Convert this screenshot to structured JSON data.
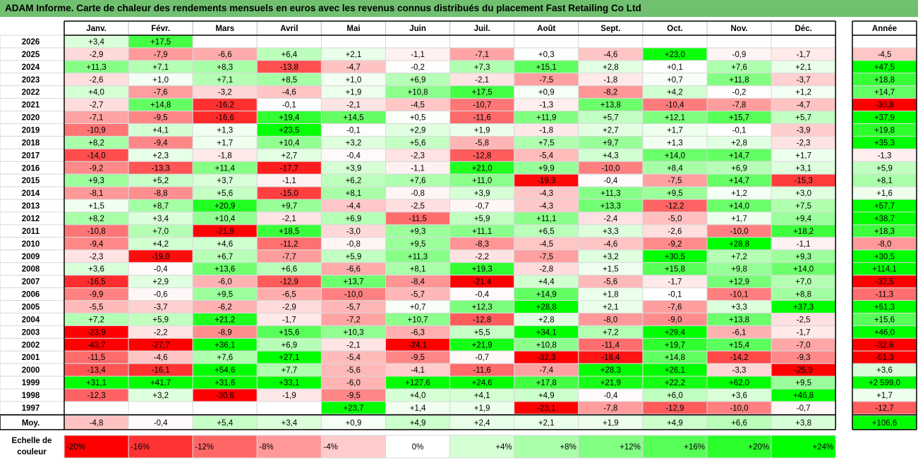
{
  "title": "ADAM Informe. Carte de chaleur des rendements mensuels en euros avec les revenus connus distribués du placement Fast Retailing Co Ltd",
  "chart_data": {
    "type": "heatmap",
    "columns": [
      "Janv.",
      "Févr.",
      "Mars",
      "Avril",
      "Mai",
      "Juin",
      "Juil.",
      "Août",
      "Sept.",
      "Oct.",
      "Nov.",
      "Déc."
    ],
    "annual_header": "Année",
    "rows": [
      {
        "year": "2026",
        "values": [
          "+3,4",
          "+17,5",
          "",
          "",
          "",
          "",
          "",
          "",
          "",
          "",
          "",
          ""
        ],
        "annual": ""
      },
      {
        "year": "2025",
        "values": [
          "-2,9",
          "-7,9",
          "-6,6",
          "+6,4",
          "+2,1",
          "-1,1",
          "-7,1",
          "+0,3",
          "-4,6",
          "+23,0",
          "-0,9",
          "-1,7"
        ],
        "annual": "-4,5"
      },
      {
        "year": "2024",
        "values": [
          "+11,3",
          "+7,1",
          "+8,3",
          "-13,8",
          "-4,7",
          "-0,2",
          "+7,3",
          "+15,1",
          "+2,8",
          "+0,1",
          "+7,6",
          "+2,1"
        ],
        "annual": "+47,5"
      },
      {
        "year": "2023",
        "values": [
          "-2,6",
          "+1,0",
          "+7,1",
          "+8,5",
          "+1,0",
          "+6,9",
          "-2,1",
          "-7,5",
          "-1,8",
          "+0,7",
          "+11,8",
          "-3,7"
        ],
        "annual": "+18,8"
      },
      {
        "year": "2022",
        "values": [
          "+4,0",
          "-7,6",
          "-3,2",
          "-4,6",
          "+1,9",
          "+10,8",
          "+17,5",
          "+0,9",
          "-8,2",
          "+4,2",
          "-0,2",
          "+1,2"
        ],
        "annual": "+14,7"
      },
      {
        "year": "2021",
        "values": [
          "-2,7",
          "+14,8",
          "-16,2",
          "-0,1",
          "-2,1",
          "-4,5",
          "-10,7",
          "-1,3",
          "+13,8",
          "-10,4",
          "-7,8",
          "-4,7"
        ],
        "annual": "-30,8"
      },
      {
        "year": "2020",
        "values": [
          "-7,1",
          "-9,5",
          "-16,6",
          "+19,4",
          "+14,5",
          "+0,5",
          "-11,6",
          "+11,9",
          "+5,7",
          "+12,1",
          "+15,7",
          "+5,7"
        ],
        "annual": "+37,9"
      },
      {
        "year": "2019",
        "values": [
          "-10,9",
          "+4,1",
          "+1,3",
          "+23,5",
          "-0,1",
          "+2,9",
          "+1,9",
          "-1,8",
          "+2,7",
          "+1,7",
          "-0,1",
          "-3,9"
        ],
        "annual": "+19,8"
      },
      {
        "year": "2018",
        "values": [
          "+8,2",
          "-9,4",
          "+1,7",
          "+10,4",
          "+3,2",
          "+5,6",
          "-5,8",
          "+7,5",
          "+9,7",
          "+1,3",
          "+2,8",
          "-2,3"
        ],
        "annual": "+35,3"
      },
      {
        "year": "2017",
        "values": [
          "-14,0",
          "+2,3",
          "-1,8",
          "+2,7",
          "-0,4",
          "-2,3",
          "-12,8",
          "-5,4",
          "+4,3",
          "+14,0",
          "+14,7",
          "+1,7"
        ],
        "annual": "-1,3"
      },
      {
        "year": "2016",
        "values": [
          "-9,2",
          "-13,3",
          "+11,4",
          "-17,7",
          "+3,9",
          "-1,1",
          "+21,0",
          "+9,9",
          "-10,0",
          "+8,4",
          "+6,9",
          "+3,1"
        ],
        "annual": "+5,9"
      },
      {
        "year": "2015",
        "values": [
          "+9,3",
          "+5,2",
          "+3,7",
          "-1,1",
          "+6,2",
          "+7,6",
          "+11,0",
          "-19,3",
          "-0,4",
          "-7,5",
          "+14,7",
          "-15,3"
        ],
        "annual": "+8,1"
      },
      {
        "year": "2014",
        "values": [
          "-8,1",
          "-8,8",
          "+5,6",
          "-15,0",
          "+8,1",
          "-0,8",
          "+3,9",
          "-4,3",
          "+11,3",
          "+9,5",
          "+1,2",
          "+3,0"
        ],
        "annual": "+1,6"
      },
      {
        "year": "2013",
        "values": [
          "+1,5",
          "+8,7",
          "+20,9",
          "+9,7",
          "-4,4",
          "-2,5",
          "-0,7",
          "-4,3",
          "+13,3",
          "-12,2",
          "+14,0",
          "+7,5"
        ],
        "annual": "+57,7"
      },
      {
        "year": "2012",
        "values": [
          "+8,2",
          "+3,4",
          "+10,4",
          "-2,1",
          "+6,9",
          "-11,5",
          "+5,9",
          "+11,1",
          "-2,4",
          "-5,0",
          "+1,7",
          "+9,4"
        ],
        "annual": "+38,7"
      },
      {
        "year": "2011",
        "values": [
          "-10,8",
          "+7,0",
          "-21,9",
          "+18,5",
          "-3,0",
          "+9,3",
          "+11,1",
          "+6,5",
          "+3,3",
          "-2,6",
          "-10,0",
          "+18,2"
        ],
        "annual": "+18,3"
      },
      {
        "year": "2010",
        "values": [
          "-9,4",
          "+4,2",
          "+4,6",
          "-11,2",
          "-0,8",
          "+9,5",
          "-8,3",
          "-4,5",
          "-4,6",
          "-9,2",
          "+28,8",
          "-1,1"
        ],
        "annual": "-8,0"
      },
      {
        "year": "2009",
        "values": [
          "-2,3",
          "-19,0",
          "+6,7",
          "-7,7",
          "+5,9",
          "+11,3",
          "-2,2",
          "-7,5",
          "+3,2",
          "+30,5",
          "+7,2",
          "+9,3"
        ],
        "annual": "+30,5"
      },
      {
        "year": "2008",
        "values": [
          "+3,6",
          "-0,4",
          "+13,6",
          "+6,6",
          "-6,6",
          "+8,1",
          "+19,3",
          "-2,8",
          "+1,5",
          "+15,8",
          "+9,8",
          "+14,0"
        ],
        "annual": "+114,1"
      },
      {
        "year": "2007",
        "values": [
          "-16,5",
          "+2,9",
          "-6,0",
          "-12,9",
          "+13,7",
          "-8,4",
          "-21,4",
          "+4,4",
          "-5,6",
          "-1,7",
          "+12,9",
          "+7,0"
        ],
        "annual": "-32,5"
      },
      {
        "year": "2006",
        "values": [
          "-9,9",
          "-0,6",
          "+9,5",
          "-6,5",
          "-10,0",
          "-5,7",
          "-0,4",
          "+14,9",
          "+1,8",
          "-0,1",
          "-10,1",
          "+8,8"
        ],
        "annual": "-11,3"
      },
      {
        "year": "2005",
        "values": [
          "-5,5",
          "-3,7",
          "-6,2",
          "-2,9",
          "-5,7",
          "+0,7",
          "+12,3",
          "+28,8",
          "+2,1",
          "-7,6",
          "+3,3",
          "+37,3"
        ],
        "annual": "+51,3"
      },
      {
        "year": "2004",
        "values": [
          "+7,2",
          "+5,9",
          "+21,2",
          "-1,7",
          "-7,2",
          "+10,7",
          "-12,8",
          "+2,8",
          "-8,0",
          "-9,0",
          "+13,8",
          "-2,5"
        ],
        "annual": "+15,6"
      },
      {
        "year": "2003",
        "values": [
          "-23,9",
          "-2,2",
          "-8,9",
          "+15,6",
          "+10,3",
          "-6,3",
          "+5,5",
          "+34,1",
          "+7,2",
          "+29,4",
          "-6,1",
          "-1,7"
        ],
        "annual": "+46,0"
      },
      {
        "year": "2002",
        "values": [
          "-43,7",
          "-27,7",
          "+36,1",
          "+6,9",
          "-2,1",
          "-24,1",
          "+21,9",
          "+10,8",
          "-11,4",
          "+19,7",
          "+15,4",
          "-7,0"
        ],
        "annual": "-32,6"
      },
      {
        "year": "2001",
        "values": [
          "-11,5",
          "-4,6",
          "+7,6",
          "+27,1",
          "-5,4",
          "-9,5",
          "-0,7",
          "-32,3",
          "-18,4",
          "+14,8",
          "-14,2",
          "-9,3"
        ],
        "annual": "-51,3"
      },
      {
        "year": "2000",
        "values": [
          "-13,4",
          "-16,1",
          "+54,6",
          "+7,7",
          "-5,6",
          "-4,1",
          "-11,6",
          "-7,4",
          "+28,3",
          "+26,1",
          "-3,3",
          "-25,9"
        ],
        "annual": "+3,6"
      },
      {
        "year": "1999",
        "values": [
          "+31,1",
          "+41,7",
          "+31,6",
          "+33,1",
          "-6,0",
          "+127,6",
          "+24,6",
          "+17,8",
          "+21,9",
          "+22,2",
          "+62,0",
          "+9,5"
        ],
        "annual": "+2 599,0"
      },
      {
        "year": "1998",
        "values": [
          "-12,3",
          "+3,2",
          "-30,6",
          "-1,9",
          "-9,5",
          "+4,0",
          "+4,1",
          "+4,9",
          "-0,4",
          "+6,0",
          "+3,6",
          "+46,8"
        ],
        "annual": "+1,7"
      },
      {
        "year": "1997",
        "values": [
          "",
          "",
          "",
          "",
          "+23,7",
          "+1,4",
          "+1,9",
          "-23,1",
          "-7,8",
          "-12,9",
          "-10,0",
          "-0,7"
        ],
        "annual": "-12,7"
      }
    ],
    "average": {
      "label": "Moy.",
      "values": [
        "-4,8",
        "-0,4",
        "+5,4",
        "+3,4",
        "+0,9",
        "+4,9",
        "+2,4",
        "+2,1",
        "+1,9",
        "+4,9",
        "+6,6",
        "+3,8"
      ],
      "annual": "+106,6"
    },
    "scale": {
      "label_line1": "Echelle de",
      "label_line2": "couleur",
      "steps": [
        {
          "label": "-20%",
          "value": -20
        },
        {
          "label": "-16%",
          "value": -16
        },
        {
          "label": "-12%",
          "value": -12
        },
        {
          "label": "-8%",
          "value": -8
        },
        {
          "label": "-4%",
          "value": -4
        },
        {
          "label": "0%",
          "value": 0
        },
        {
          "label": "+4%",
          "value": 4
        },
        {
          "label": "+8%",
          "value": 8
        },
        {
          "label": "+12%",
          "value": 12
        },
        {
          "label": "+16%",
          "value": 16
        },
        {
          "label": "+20%",
          "value": 20
        },
        {
          "label": "+24%",
          "value": 24
        }
      ]
    },
    "colors": {
      "title_bg": "#70c070",
      "max_red": "#ff0000",
      "max_green": "#00ff00",
      "neutral": "#ffffff"
    }
  }
}
